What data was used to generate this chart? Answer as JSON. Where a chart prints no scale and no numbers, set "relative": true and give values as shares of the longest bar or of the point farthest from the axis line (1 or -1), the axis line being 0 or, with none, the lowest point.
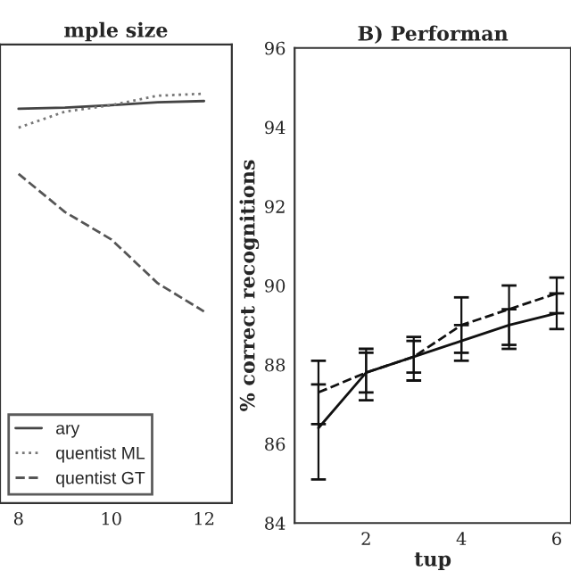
{
  "chart_data": [
    {
      "type": "line",
      "title": "mple size",
      "relative": true,
      "x": [
        8,
        9,
        10,
        11,
        12
      ],
      "xlim": [
        7.6,
        12.6
      ],
      "xticks": [
        8,
        10,
        12
      ],
      "grid": false,
      "legend": "bottom left",
      "marker": "none",
      "series": [
        {
          "name": "ary",
          "color": "#444444",
          "line_style": "solid",
          "values": [
            0.963,
            0.966,
            0.972,
            0.979,
            0.982
          ]
        },
        {
          "name": "quentist ML",
          "color": "#777777",
          "line_style": "dotted",
          "values": [
            0.917,
            0.956,
            0.972,
            0.995,
            1.0
          ]
        },
        {
          "name": "quentist GT",
          "color": "#555555",
          "line_style": "dashed",
          "values": [
            0.804,
            0.711,
            0.644,
            0.537,
            0.468
          ]
        }
      ]
    },
    {
      "type": "line",
      "title": "B) Performan",
      "xlabel": "tup",
      "ylabel": "% correct recognitions",
      "x": [
        1,
        2,
        3,
        4,
        5,
        6
      ],
      "xlim": [
        0.5,
        6.3
      ],
      "xticks": [
        2,
        4,
        6
      ],
      "ylim": [
        84,
        96
      ],
      "yticks": [
        84,
        86,
        88,
        90,
        92,
        94,
        96
      ],
      "grid": false,
      "legend": false,
      "marker": "none",
      "series": [
        {
          "color": "#111111",
          "line_style": "solid",
          "values": [
            86.4,
            87.8,
            88.2,
            88.6,
            89.0,
            89.3
          ],
          "errors": [
            [
              85.1,
              87.5
            ],
            [
              87.1,
              88.4
            ],
            [
              87.6,
              88.6
            ],
            [
              88.1,
              89.0
            ],
            [
              88.4,
              89.4
            ],
            [
              88.9,
              89.8
            ]
          ]
        },
        {
          "color": "#111111",
          "line_style": "dashed",
          "values": [
            87.3,
            87.8,
            88.2,
            89.0,
            89.4,
            89.8
          ],
          "errors": [
            [
              86.5,
              88.1
            ],
            [
              87.3,
              88.3
            ],
            [
              87.8,
              88.7
            ],
            [
              88.3,
              89.7
            ],
            [
              88.5,
              90.0
            ],
            [
              89.3,
              90.2
            ]
          ]
        }
      ]
    }
  ]
}
